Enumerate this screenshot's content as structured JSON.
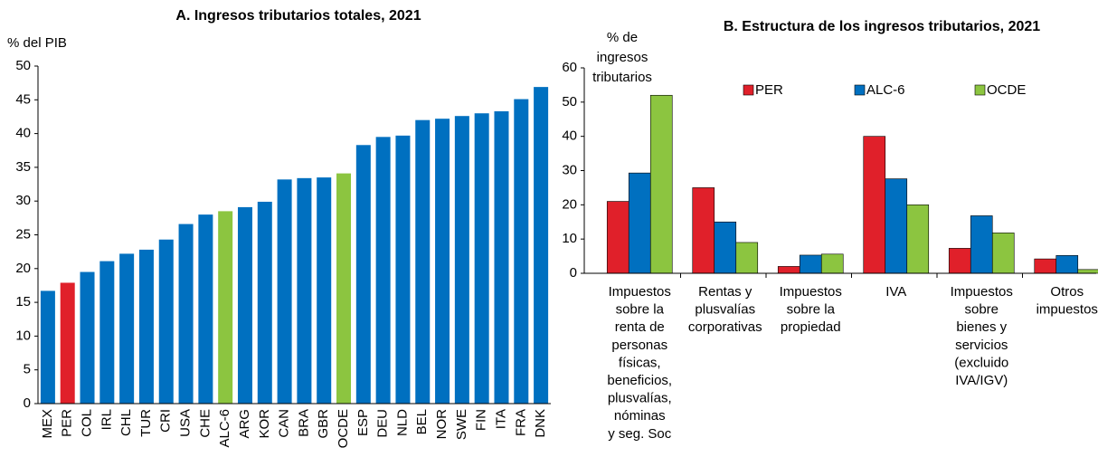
{
  "chart_data": [
    {
      "type": "bar",
      "title": "A. Ingresos tributarios totales, 2021",
      "ylabel": "% del PIB",
      "categories": [
        "MEX",
        "PER",
        "COL",
        "IRL",
        "CHL",
        "TUR",
        "CRI",
        "USA",
        "CHE",
        "ALC-6",
        "ARG",
        "KOR",
        "CAN",
        "BRA",
        "GBR",
        "OCDE",
        "ESP",
        "DEU",
        "NLD",
        "BEL",
        "NOR",
        "SWE",
        "FIN",
        "ITA",
        "FRA",
        "DNK"
      ],
      "values": [
        16.7,
        17.9,
        19.5,
        21.1,
        22.2,
        22.8,
        24.3,
        26.6,
        28.0,
        28.5,
        29.1,
        29.9,
        33.2,
        33.4,
        33.5,
        34.1,
        38.3,
        39.5,
        39.7,
        42.0,
        42.2,
        42.6,
        43.0,
        43.3,
        45.1,
        46.9
      ],
      "colors": [
        "#0070c0",
        "#e0202a",
        "#0070c0",
        "#0070c0",
        "#0070c0",
        "#0070c0",
        "#0070c0",
        "#0070c0",
        "#0070c0",
        "#8cc540",
        "#0070c0",
        "#0070c0",
        "#0070c0",
        "#0070c0",
        "#0070c0",
        "#8cc540",
        "#0070c0",
        "#0070c0",
        "#0070c0",
        "#0070c0",
        "#0070c0",
        "#0070c0",
        "#0070c0",
        "#0070c0",
        "#0070c0",
        "#0070c0"
      ],
      "ylim": [
        0,
        50
      ],
      "yticks": [
        0,
        5,
        10,
        15,
        20,
        25,
        30,
        35,
        40,
        45,
        50
      ],
      "grid": false
    },
    {
      "type": "grouped_bar",
      "title": "B. Estructura de los ingresos tributarios, 2021",
      "ylabel": [
        "% de",
        "ingresos",
        "tributarios"
      ],
      "categories": [
        [
          "Impuestos",
          "sobre la",
          "renta de",
          "personas",
          "físicas,",
          "beneficios,",
          "plusvalías,",
          "nóminas",
          "y seg. Soc"
        ],
        [
          "Rentas y",
          "plusvalías",
          "corporativas"
        ],
        [
          "Impuestos",
          "sobre la",
          "propiedad"
        ],
        [
          "IVA"
        ],
        [
          "Impuestos",
          "sobre",
          "bienes y",
          "servicios",
          "(excluido",
          "IVA/IGV)"
        ],
        [
          "Otros",
          "impuestos"
        ]
      ],
      "series": [
        {
          "name": "PER",
          "color": "#e0202a",
          "values": [
            21,
            25,
            2,
            40,
            7.3,
            4.2
          ]
        },
        {
          "name": "ALC-6",
          "color": "#0070c0",
          "values": [
            29.3,
            15,
            5.3,
            27.6,
            16.8,
            5.2
          ]
        },
        {
          "name": "OCDE",
          "color": "#8cc540",
          "values": [
            52,
            9,
            5.6,
            20,
            11.8,
            1.1
          ]
        }
      ],
      "ylim": [
        0,
        60
      ],
      "yticks": [
        0,
        10,
        20,
        30,
        40,
        50,
        60
      ],
      "grid": false,
      "legend": "top"
    }
  ]
}
